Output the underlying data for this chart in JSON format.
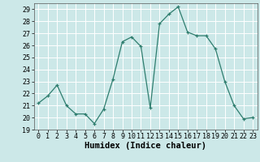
{
  "x": [
    0,
    1,
    2,
    3,
    4,
    5,
    6,
    7,
    8,
    9,
    10,
    11,
    12,
    13,
    14,
    15,
    16,
    17,
    18,
    19,
    20,
    21,
    22,
    23
  ],
  "y": [
    21.2,
    21.8,
    22.7,
    21.0,
    20.3,
    20.3,
    19.5,
    20.7,
    23.2,
    26.3,
    26.7,
    25.9,
    20.8,
    27.8,
    28.6,
    29.2,
    27.1,
    26.8,
    26.8,
    25.7,
    23.0,
    21.0,
    19.9,
    20.0
  ],
  "xlabel": "Humidex (Indice chaleur)",
  "ylim": [
    19,
    29.5
  ],
  "yticks": [
    19,
    20,
    21,
    22,
    23,
    24,
    25,
    26,
    27,
    28,
    29
  ],
  "xticks": [
    0,
    1,
    2,
    3,
    4,
    5,
    6,
    7,
    8,
    9,
    10,
    11,
    12,
    13,
    14,
    15,
    16,
    17,
    18,
    19,
    20,
    21,
    22,
    23
  ],
  "line_color": "#2e7d6e",
  "marker_color": "#2e7d6e",
  "bg_color": "#cce8e8",
  "grid_color": "#ffffff",
  "tick_fontsize": 6.0,
  "xlabel_fontsize": 7.5
}
